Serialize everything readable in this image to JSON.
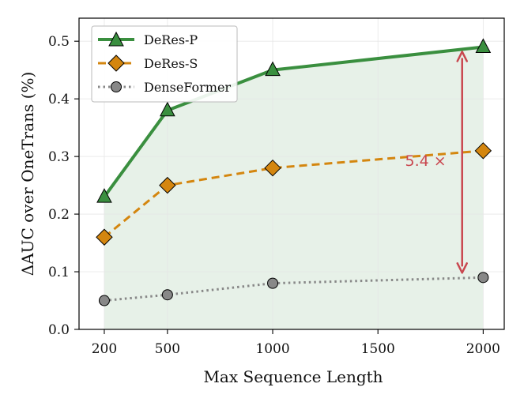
{
  "chart_data": {
    "type": "line",
    "xlabel": "Max Sequence Length",
    "ylabel": "ΔAUC over OneTrans (%)",
    "x": [
      200,
      500,
      1000,
      2000
    ],
    "xticks": [
      200,
      500,
      1000,
      1500,
      2000
    ],
    "xlim": [
      80,
      2100
    ],
    "ylim": [
      0,
      0.54
    ],
    "yticks": [
      "0.0",
      "0.1",
      "0.2",
      "0.3",
      "0.4",
      "0.5"
    ],
    "grid": true,
    "legend_position": "top-left",
    "series": [
      {
        "name": "DeRes-P",
        "values": [
          0.23,
          0.38,
          0.45,
          0.49
        ],
        "color": "#3a8f3f",
        "marker": "triangle",
        "linestyle": "solid",
        "fill_below": true
      },
      {
        "name": "DeRes-S",
        "values": [
          0.16,
          0.25,
          0.28,
          0.31
        ],
        "color": "#d4860f",
        "marker": "diamond",
        "linestyle": "dashed"
      },
      {
        "name": "DenseFormer",
        "values": [
          0.05,
          0.06,
          0.08,
          0.09
        ],
        "color": "#888888",
        "marker": "circle",
        "linestyle": "dotted"
      }
    ],
    "annotation": {
      "text": "5.4 ×",
      "x": 1900,
      "y_top": 0.49,
      "y_bottom": 0.09,
      "color": "#c9474f"
    }
  }
}
